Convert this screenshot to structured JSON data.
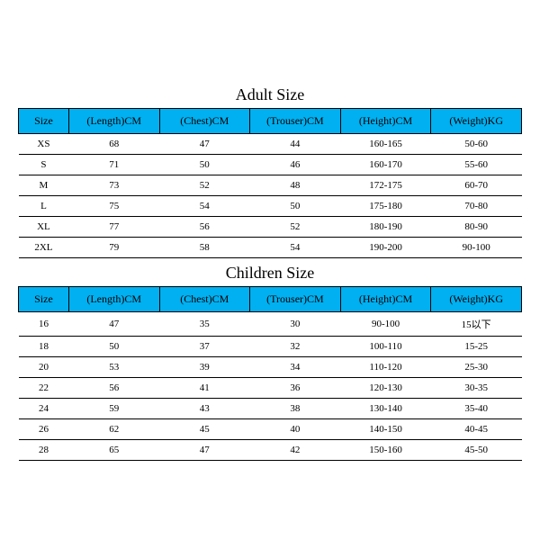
{
  "adult": {
    "title": "Adult Size",
    "columns": [
      "Size",
      "(Length)CM",
      "(Chest)CM",
      "(Trouser)CM",
      "(Height)CM",
      "(Weight)KG"
    ],
    "rows": [
      [
        "XS",
        "68",
        "47",
        "44",
        "160-165",
        "50-60"
      ],
      [
        "S",
        "71",
        "50",
        "46",
        "160-170",
        "55-60"
      ],
      [
        "M",
        "73",
        "52",
        "48",
        "172-175",
        "60-70"
      ],
      [
        "L",
        "75",
        "54",
        "50",
        "175-180",
        "70-80"
      ],
      [
        "XL",
        "77",
        "56",
        "52",
        "180-190",
        "80-90"
      ],
      [
        "2XL",
        "79",
        "58",
        "54",
        "190-200",
        "90-100"
      ]
    ]
  },
  "children": {
    "title": "Children Size",
    "columns": [
      "Size",
      "(Length)CM",
      "(Chest)CM",
      "(Trouser)CM",
      "(Height)CM",
      "(Weight)KG"
    ],
    "rows": [
      [
        "16",
        "47",
        "35",
        "30",
        "90-100",
        "15以下"
      ],
      [
        "18",
        "50",
        "37",
        "32",
        "100-110",
        "15-25"
      ],
      [
        "20",
        "53",
        "39",
        "34",
        "110-120",
        "25-30"
      ],
      [
        "22",
        "56",
        "41",
        "36",
        "120-130",
        "30-35"
      ],
      [
        "24",
        "59",
        "43",
        "38",
        "130-140",
        "35-40"
      ],
      [
        "26",
        "62",
        "45",
        "40",
        "140-150",
        "40-45"
      ],
      [
        "28",
        "65",
        "47",
        "42",
        "150-160",
        "45-50"
      ]
    ]
  },
  "style": {
    "header_bg": "#00b0f0",
    "border_color": "#000000",
    "text_color": "#000000",
    "background": "#ffffff",
    "title_fontsize": 18,
    "header_fontsize": 12,
    "cell_fontsize": 11,
    "column_widths_pct": [
      10,
      18,
      18,
      18,
      18,
      18
    ]
  }
}
